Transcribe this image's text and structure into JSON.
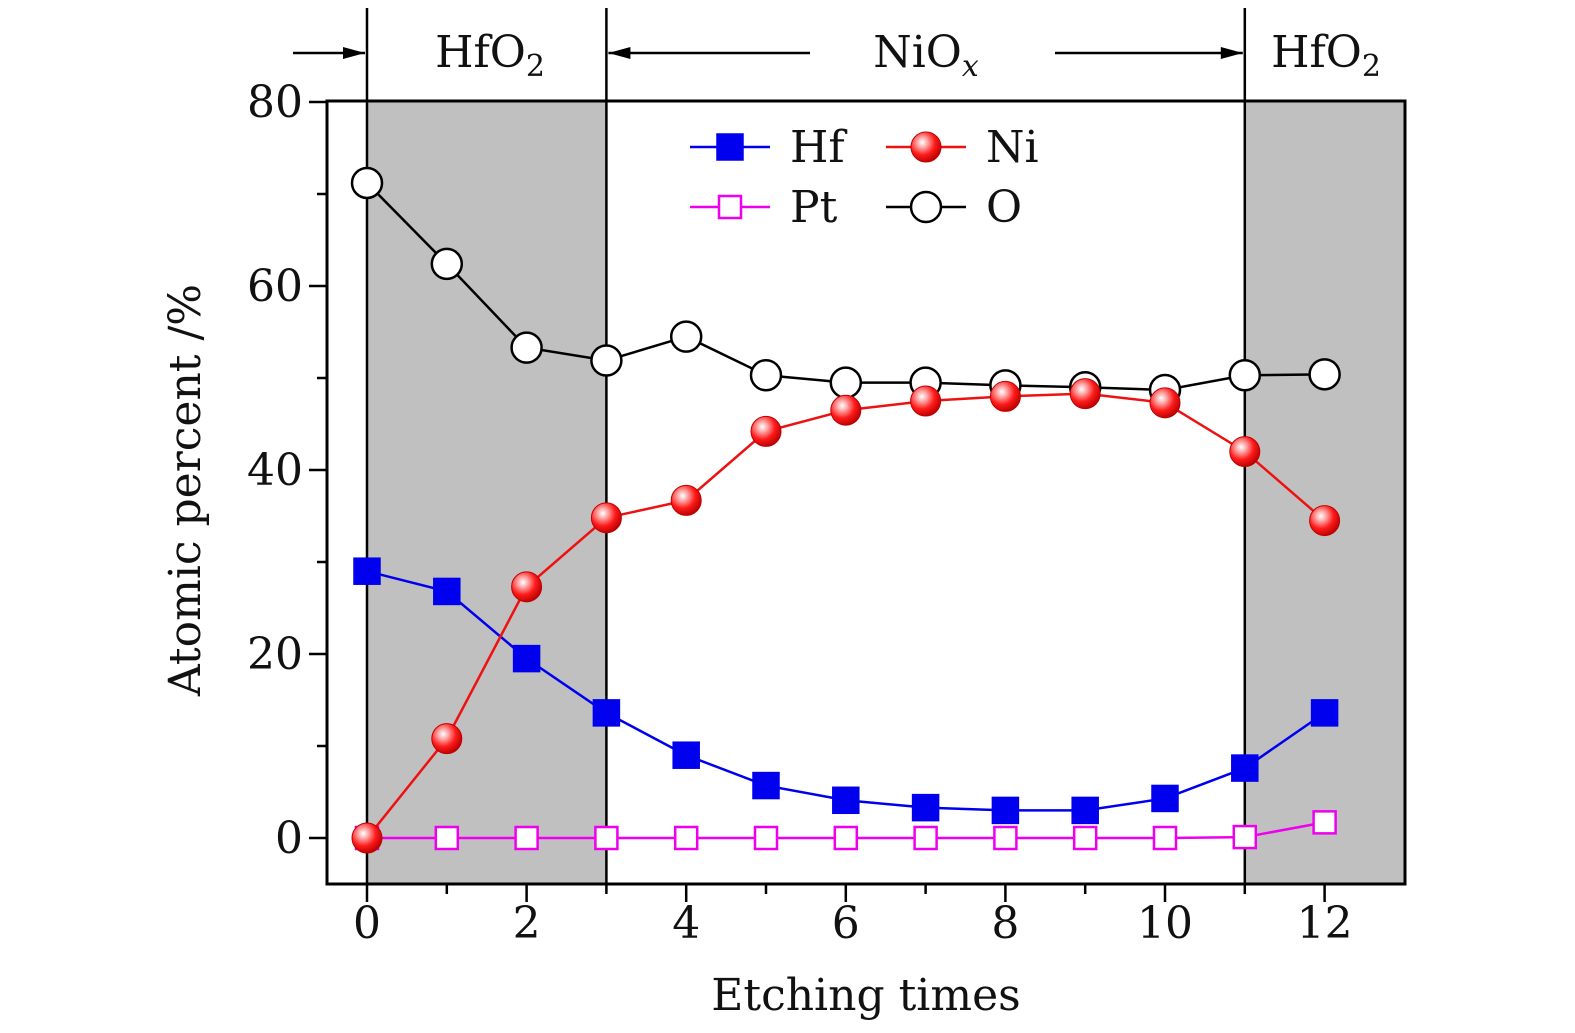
{
  "chart_data": {
    "type": "line",
    "title": "",
    "xlabel": "Etching times",
    "ylabel": "Atomic percent /%",
    "xlim": [
      -0.5,
      13
    ],
    "ylim": [
      -5,
      80
    ],
    "xticks": [
      0,
      2,
      4,
      6,
      8,
      10,
      12
    ],
    "yticks": [
      0,
      20,
      40,
      60,
      80
    ],
    "grid": false,
    "legend_position": "top-center",
    "x": [
      0,
      1,
      2,
      3,
      4,
      5,
      6,
      7,
      8,
      9,
      10,
      11,
      12
    ],
    "series": [
      {
        "name": "Hf",
        "color": "#0000ee",
        "marker": "filled-square",
        "values": [
          29,
          26.8,
          19.5,
          13.6,
          9,
          5.7,
          4.1,
          3.3,
          3,
          3,
          4.3,
          7.6,
          13.6
        ]
      },
      {
        "name": "Ni",
        "color": "#ee1111",
        "marker": "filled-circle",
        "values": [
          0,
          10.8,
          27.3,
          34.8,
          36.7,
          44.2,
          46.5,
          47.5,
          48,
          48.3,
          47.3,
          42,
          34.5
        ]
      },
      {
        "name": "Pt",
        "color": "#ee00ee",
        "marker": "open-square",
        "values": [
          0,
          0,
          0,
          0,
          0,
          0,
          0,
          0,
          0,
          0,
          0,
          0.1,
          1.7
        ]
      },
      {
        "name": "O",
        "color": "#000000",
        "marker": "open-circle",
        "values": [
          71.2,
          62.4,
          53.3,
          51.9,
          54.5,
          50.3,
          49.5,
          49.5,
          49.2,
          49,
          48.7,
          50.3,
          50.4
        ]
      }
    ],
    "regions": [
      {
        "label_main": "HfO",
        "label_sub": "2",
        "from": 0,
        "to": 3,
        "shaded": true
      },
      {
        "label_main": "NiO",
        "label_sub": "x",
        "from": 3,
        "to": 11,
        "shaded": false
      },
      {
        "label_main": "HfO",
        "label_sub": "2",
        "from": 11,
        "to": 13,
        "shaded": true
      }
    ],
    "region_fill": "#c0c0c0"
  }
}
